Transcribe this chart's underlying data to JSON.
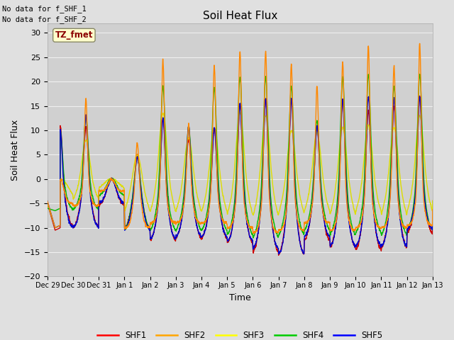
{
  "title": "Soil Heat Flux",
  "xlabel": "Time",
  "ylabel": "Soil Heat Flux",
  "ylim": [
    -20,
    32
  ],
  "legend_labels": [
    "SHF1",
    "SHF2",
    "SHF3",
    "SHF4",
    "SHF5"
  ],
  "legend_colors": [
    "#ff0000",
    "#ffa500",
    "#ffff00",
    "#00cc00",
    "#0000ff"
  ],
  "line_colors": [
    "#cc0000",
    "#ff8800",
    "#dddd00",
    "#00bb00",
    "#0000cc"
  ],
  "text_lines": [
    "No data for f_SHF_1",
    "No data for f_SHF_2"
  ],
  "tz_label": "TZ_fmet",
  "tz_box_color": "#ffffcc",
  "tz_text_color": "#8b0000",
  "bg_color": "#e0e0e0",
  "plot_bg_color": "#d0d0d0",
  "grid_color": "#f0f0f0",
  "tick_labels": [
    "Dec 29",
    "Dec 30",
    "Dec 31",
    "Jan 1",
    "Jan 2",
    "Jan 3",
    "Jan 4",
    "Jan 5",
    "Jan 6",
    "Jan 7",
    "Jan 8",
    "Jan 9",
    "Jan 10",
    "Jan 11",
    "Jan 12",
    "Jan 13"
  ],
  "yticks": [
    -20,
    -15,
    -10,
    -5,
    0,
    5,
    10,
    15,
    20,
    25,
    30
  ],
  "n_days": 15,
  "pts_per_day": 288
}
